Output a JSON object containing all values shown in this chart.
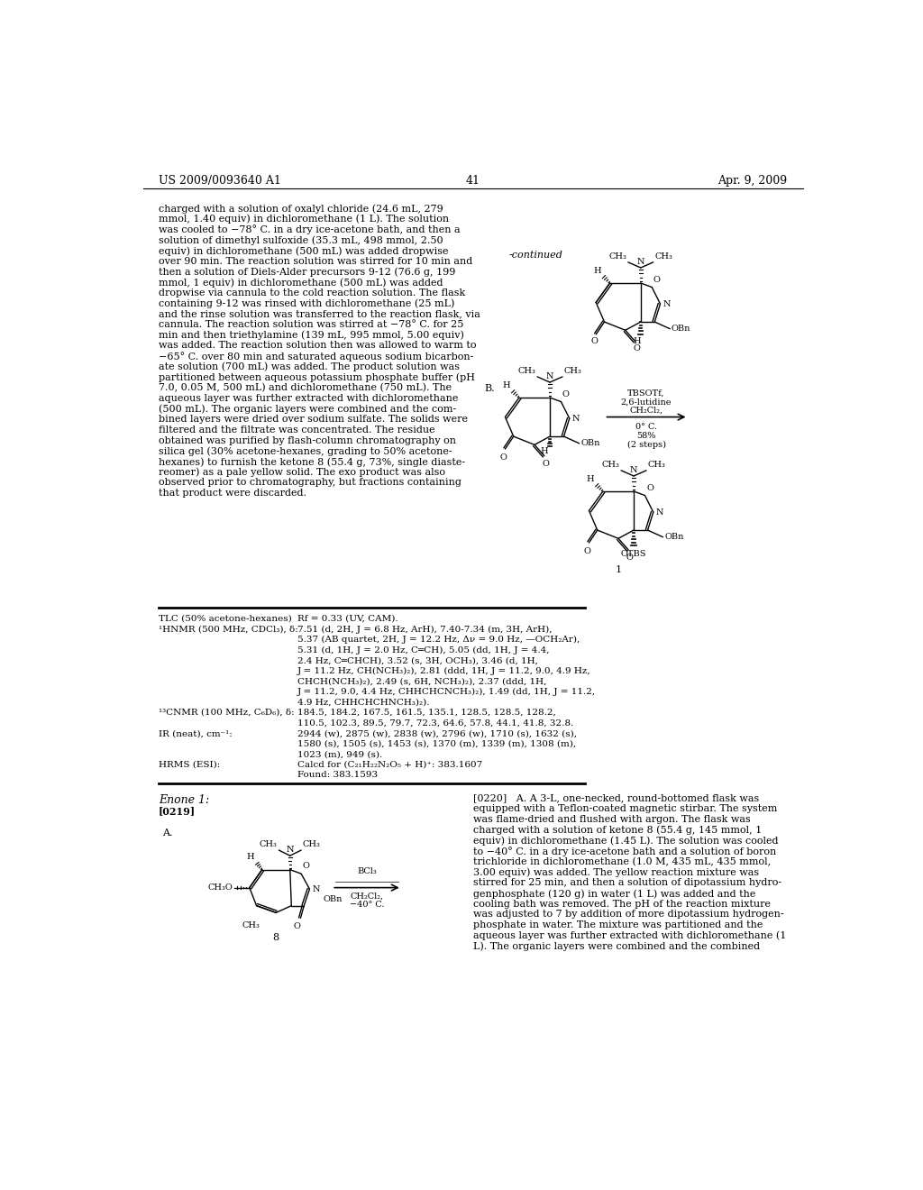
{
  "page_header_left": "US 2009/0093640 A1",
  "page_header_right": "Apr. 9, 2009",
  "page_number": "41",
  "bg_color": "#ffffff",
  "body_text_left": "charged with a solution of oxalyl chloride (24.6 mL, 279\nmmol, 1.40 equiv) in dichloromethane (1 L). The solution\nwas cooled to −78° C. in a dry ice-acetone bath, and then a\nsolution of dimethyl sulfoxide (35.3 mL, 498 mmol, 2.50\nequiv) in dichloromethane (500 mL) was added dropwise\nover 90 min. The reaction solution was stirred for 10 min and\nthen a solution of Diels-Alder precursors 9-12 (76.6 g, 199\nmmol, 1 equiv) in dichloromethane (500 mL) was added\ndropwise via cannula to the cold reaction solution. The flask\ncontaining 9-12 was rinsed with dichloromethane (25 mL)\nand the rinse solution was transferred to the reaction flask, via\ncannula. The reaction solution was stirred at −78° C. for 25\nmin and then triethylamine (139 mL, 995 mmol, 5.00 equiv)\nwas added. The reaction solution then was allowed to warm to\n−65° C. over 80 min and saturated aqueous sodium bicarbon-\nate solution (700 mL) was added. The product solution was\npartitioned between aqueous potassium phosphate buffer (pH\n7.0, 0.05 M, 500 mL) and dichloromethane (750 mL). The\naqueous layer was further extracted with dichloromethane\n(500 mL). The organic layers were combined and the com-\nbined layers were dried over sodium sulfate. The solids were\nfiltered and the filtrate was concentrated. The residue\nobtained was purified by flash-column chromatography on\nsilica gel (30% acetone-hexanes, grading to 50% acetone-\nhexanes) to furnish the ketone 8 (55.4 g, 73%, single diaste-\nreomer) as a pale yellow solid. The exo product was also\nobserved prior to chromatography, but fractions containing\nthat product were discarded.",
  "table_rows": [
    [
      "TLC (50% acetone-hexanes)",
      "Rf = 0.33 (UV, CAM)."
    ],
    [
      "1HNMR (500 MHz, CDCl3), δ:",
      "7.51 (d, 2H, J = 6.8 Hz, ArH), 7.40-7.34 (m, 3H, ArH),"
    ],
    [
      "",
      "5.37 (AB quartet, 2H, J = 12.2 Hz, Δν = 9.0 Hz, —OCH2Ar),"
    ],
    [
      "",
      "5.31 (d, 1H, J = 2.0 Hz, C═CH), 5.05 (dd, 1H, J = 4.4,"
    ],
    [
      "",
      "2.4 Hz, C═CHCH), 3.52 (s, 3H, OCH3), 3.46 (d, 1H,"
    ],
    [
      "",
      "J = 11.2 Hz, CH(NCH3)2), 2.81 (ddd, 1H, J = 11.2, 9.0, 4.9 Hz,"
    ],
    [
      "",
      "CHCH(NCH3)2), 2.49 (s, 6H, NCH3)2), 2.37 (ddd, 1H,"
    ],
    [
      "",
      "J = 11.2, 9.0, 4.4 Hz, CHHCHCNCH3)2), 1.49 (dd, 1H, J = 11.2,"
    ],
    [
      "",
      "4.9 Hz, CHHCHCHNCH3)2)."
    ],
    [
      "13CNMR (100 MHz, C6D6), δ:",
      "184.5, 184.2, 167.5, 161.5, 135.1, 128.5, 128.5, 128.2,"
    ],
    [
      "",
      "110.5, 102.3, 89.5, 79.7, 72.3, 64.6, 57.8, 44.1, 41.8, 32.8."
    ],
    [
      "IR (neat), cm-1:",
      "2944 (w), 2875 (w), 2838 (w), 2796 (w), 1710 (s), 1632 (s),"
    ],
    [
      "",
      "1580 (s), 1505 (s), 1453 (s), 1370 (m), 1339 (m), 1308 (m),"
    ],
    [
      "",
      "1023 (m), 949 (s)."
    ],
    [
      "HRMS (ESI):",
      "Calcd for (C21H22N2O5 + H)+: 383.1607"
    ],
    [
      "",
      "Found: 383.1593"
    ]
  ],
  "enone_label": "Enone 1:",
  "para_219": "[0219]",
  "para_220_text": "[0220]   A. A 3-L, one-necked, round-bottomed flask was\nequipped with a Teflon-coated magnetic stirbar. The system\nwas flame-dried and flushed with argon. The flask was\ncharged with a solution of ketone 8 (55.4 g, 145 mmol, 1\nequiv) in dichloromethane (1.45 L). The solution was cooled\nto −40° C. in a dry ice-acetone bath and a solution of boron\ntrichloride in dichloromethane (1.0 M, 435 mL, 435 mmol,\n3.00 equiv) was added. The yellow reaction mixture was\nstirred for 25 min, and then a solution of dipotassium hydro-\ngenphosphate (120 g) in water (1 L) was added and the\ncooling bath was removed. The pH of the reaction mixture\nwas adjusted to 7 by addition of more dipotassium hydrogen-\nphosphate in water. The mixture was partitioned and the\naqueous layer was further extracted with dichloromethane (1\nL). The organic layers were combined and the combined"
}
